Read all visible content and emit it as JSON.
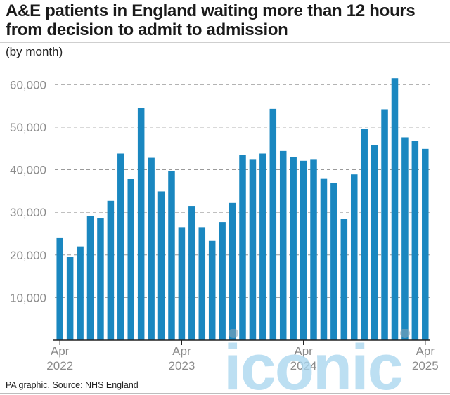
{
  "header": {
    "title": "A&E patients in England waiting more than 12 hours from decision to admit to admission",
    "subtitle": "(by month)"
  },
  "footer": {
    "source": "PA graphic. Source: NHS England"
  },
  "watermark": {
    "text": "iconic"
  },
  "colors": {
    "bar": "#1a87c0",
    "grid": "#9a9a9a",
    "axis": "#222222",
    "watermark": "#a9d6ef"
  },
  "chart_data": {
    "type": "bar",
    "title": "A&E patients in England waiting more than 12 hours from decision to admit to admission",
    "subtitle": "(by month)",
    "xlabel": "",
    "ylabel": "",
    "ylim": [
      0,
      65000
    ],
    "yticks": [
      10000,
      20000,
      30000,
      40000,
      50000,
      60000
    ],
    "ytick_labels": [
      "10,000",
      "20,000",
      "30,000",
      "40,000",
      "50,000",
      "60,000"
    ],
    "grid": "horizontal dashed",
    "categories": [
      "Apr 2022",
      "May 2022",
      "Jun 2022",
      "Jul 2022",
      "Aug 2022",
      "Sep 2022",
      "Oct 2022",
      "Nov 2022",
      "Dec 2022",
      "Jan 2023",
      "Feb 2023",
      "Mar 2023",
      "Apr 2023",
      "May 2023",
      "Jun 2023",
      "Jul 2023",
      "Aug 2023",
      "Sep 2023",
      "Oct 2023",
      "Nov 2023",
      "Dec 2023",
      "Jan 2024",
      "Feb 2024",
      "Mar 2024",
      "Apr 2024",
      "May 2024",
      "Jun 2024",
      "Jul 2024",
      "Aug 2024",
      "Sep 2024",
      "Oct 2024",
      "Nov 2024",
      "Dec 2024",
      "Jan 2025",
      "Feb 2025",
      "Mar 2025",
      "Apr 2025"
    ],
    "values": [
      24100,
      19600,
      22000,
      29200,
      28700,
      32700,
      43800,
      37900,
      54600,
      42800,
      34900,
      39700,
      26500,
      31500,
      26500,
      23300,
      27700,
      32200,
      43500,
      42500,
      43800,
      54300,
      44400,
      43000,
      42100,
      42500,
      38000,
      36800,
      28500,
      38900,
      49600,
      45800,
      54200,
      61500,
      47600,
      46700,
      44900
    ],
    "xtick_labels": [
      {
        "month": "Apr",
        "year": "2022",
        "category": "Apr 2022"
      },
      {
        "month": "Apr",
        "year": "2023",
        "category": "Apr 2023"
      },
      {
        "month": "Apr",
        "year": "2024",
        "category": "Apr 2024"
      },
      {
        "month": "Apr",
        "year": "2025",
        "category": "Apr 2025"
      }
    ]
  }
}
